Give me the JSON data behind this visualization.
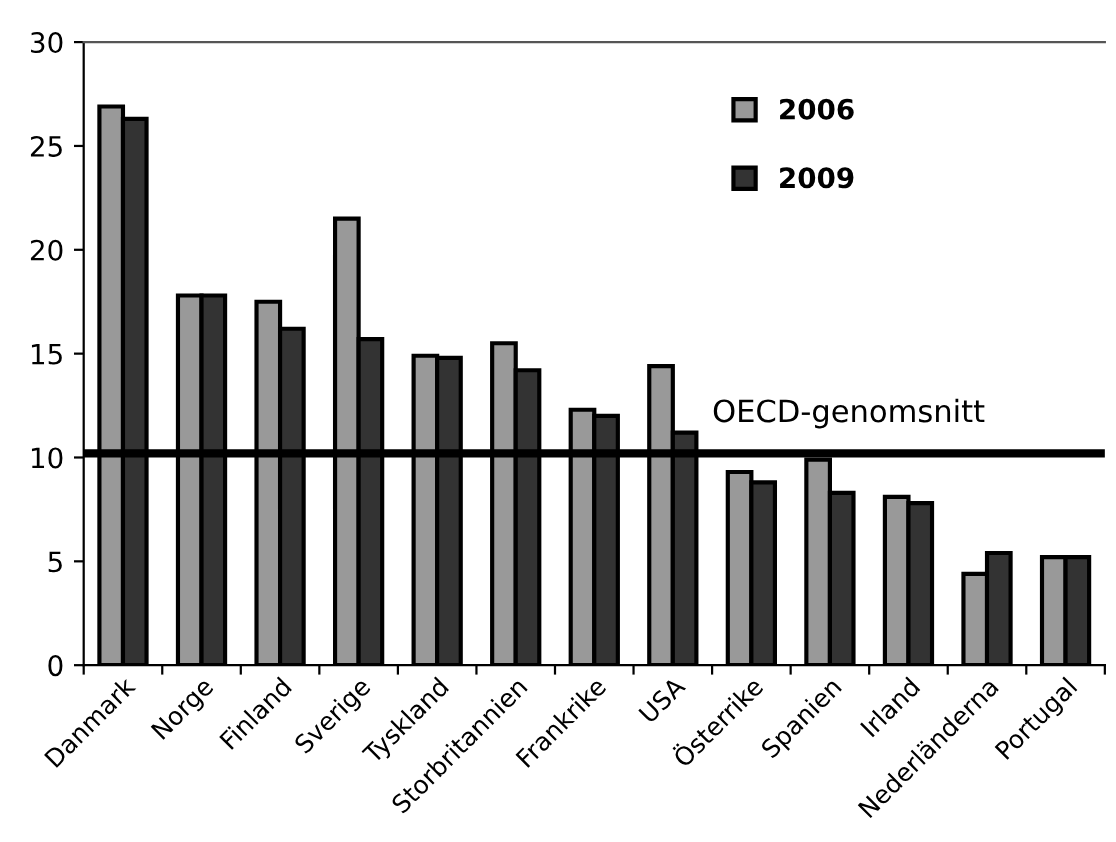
{
  "chart_data": {
    "type": "bar",
    "categories": [
      "Danmark",
      "Norge",
      "Finland",
      "Sverige",
      "Tyskland",
      "Storbritannien",
      "Frankrike",
      "USA",
      "Österrike",
      "Spanien",
      "Irland",
      "Nederländerna",
      "Portugal"
    ],
    "series": [
      {
        "name": "2006",
        "color": "#999999",
        "values": [
          26.9,
          17.8,
          17.5,
          21.5,
          14.9,
          15.5,
          12.3,
          14.4,
          9.3,
          9.9,
          8.1,
          4.4,
          5.2
        ]
      },
      {
        "name": "2009",
        "color": "#333333",
        "values": [
          26.3,
          17.8,
          16.2,
          15.7,
          14.8,
          14.2,
          12.0,
          11.2,
          8.8,
          8.3,
          7.8,
          5.4,
          5.2
        ]
      }
    ],
    "ylim": [
      0,
      30
    ],
    "yticks": [
      0,
      5,
      10,
      15,
      20,
      25,
      30
    ],
    "ref_lines": [
      {
        "axis": "y",
        "value": 10.2,
        "label": "OECD-genomsnitt",
        "color": "#000000",
        "line_style": "solid"
      }
    ],
    "legend": "top right",
    "grid": false
  }
}
